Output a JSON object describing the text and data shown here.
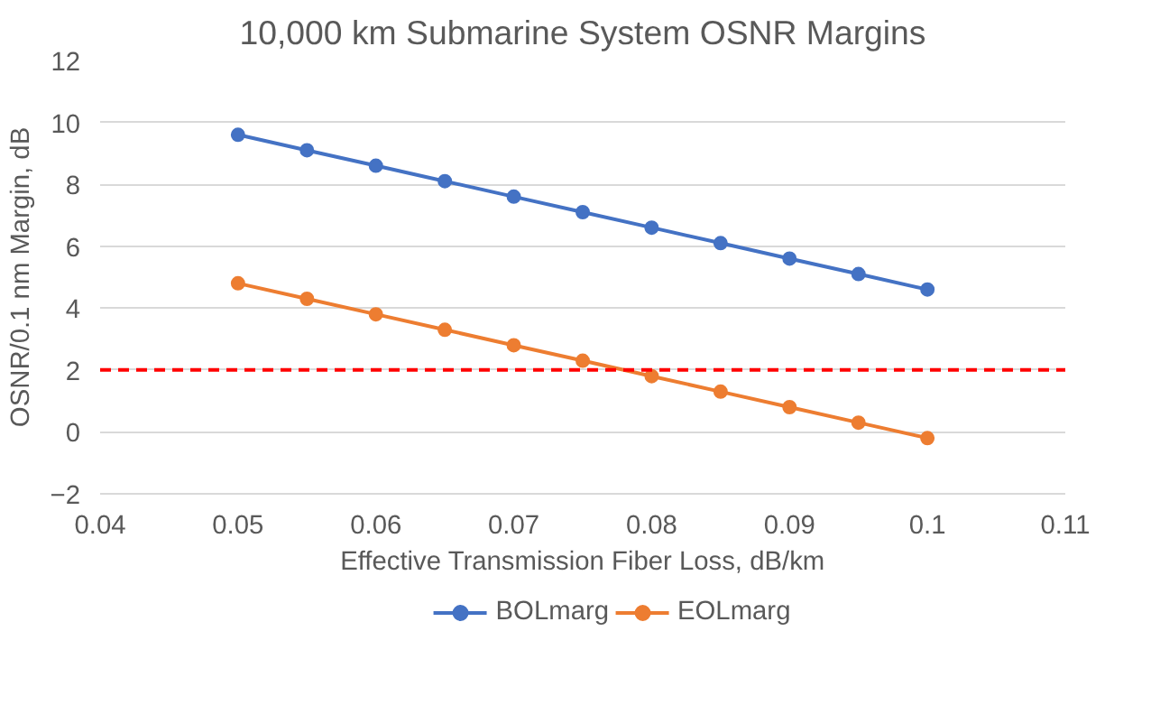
{
  "chart_data": {
    "type": "line",
    "title": "10,000 km Submarine System OSNR Margins",
    "xlabel": "Effective Transmission Fiber Loss, dB/km",
    "ylabel": "OSNR/0.1 nm Margin, dB",
    "x": [
      0.05,
      0.055,
      0.06,
      0.065,
      0.07,
      0.075,
      0.08,
      0.085,
      0.09,
      0.095,
      0.1
    ],
    "series": [
      {
        "name": "BOLmarg",
        "color": "#4472c4",
        "values": [
          9.6,
          9.1,
          8.6,
          8.1,
          7.6,
          7.1,
          6.6,
          6.1,
          5.6,
          5.1,
          4.6
        ]
      },
      {
        "name": "EOLmarg",
        "color": "#ed7d31",
        "values": [
          4.8,
          4.3,
          3.8,
          3.3,
          2.8,
          2.3,
          1.8,
          1.3,
          0.8,
          0.3,
          -0.2
        ]
      }
    ],
    "xlim": [
      0.04,
      0.11
    ],
    "xticks": [
      0.04,
      0.05,
      0.06,
      0.07,
      0.08,
      0.09,
      0.1,
      0.11
    ],
    "ylim": [
      -2,
      12
    ],
    "yticks": [
      -2,
      0,
      2,
      4,
      6,
      8,
      10,
      12
    ],
    "ref_lines": [
      {
        "axis": "y",
        "value": 2,
        "color": "#ff0000",
        "line_style": "dashed"
      }
    ],
    "grid": "y",
    "legend": "bottom",
    "marker": "circle",
    "line_style": "solid"
  }
}
